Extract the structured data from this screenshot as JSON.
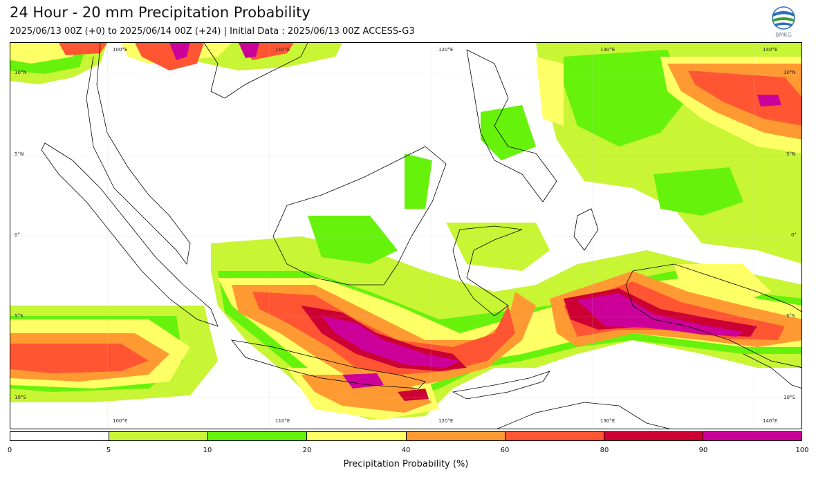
{
  "header": {
    "title": "24 Hour - 20 mm Precipitation Probability",
    "subtitle": "2025/06/13 00Z (+0) to 2025/06/14 00Z (+24) | Initial Data : 2025/06/13 00Z ACCESS-G3",
    "logo_text": "BMKG"
  },
  "map": {
    "lon_range": [
      94,
      143
    ],
    "lat_range": [
      -12,
      12
    ],
    "lon_ticks_top": [
      "100°E",
      "110°E",
      "120°E",
      "130°E",
      "140°E"
    ],
    "lon_ticks_bottom": [
      "100°E",
      "110°E",
      "120°E",
      "130°E",
      "140°E"
    ],
    "lat_ticks_left": [
      "10°N",
      "5°N",
      "0°",
      "5°S",
      "10°S"
    ],
    "lat_ticks_right": [
      "10°N",
      "5°N",
      "0°",
      "5°S",
      "10°S"
    ]
  },
  "colorbar": {
    "title": "Precipitation Probability (%)",
    "labels": [
      "0",
      "5",
      "10",
      "20",
      "40",
      "60",
      "80",
      "90",
      "100"
    ],
    "colors": [
      "#ffffff",
      "#c8f534",
      "#66f20b",
      "#ffff66",
      "#ff9a33",
      "#ff5533",
      "#cc0033",
      "#cc0099"
    ]
  }
}
